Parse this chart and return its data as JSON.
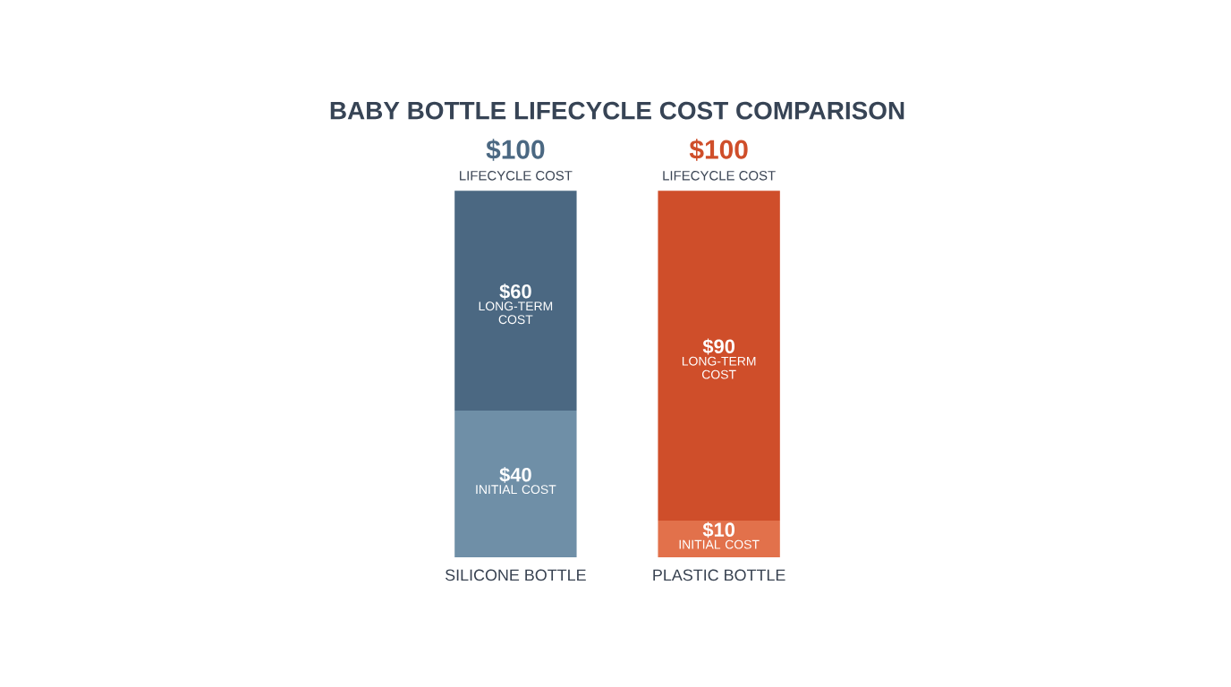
{
  "chart_data": {
    "type": "bar",
    "stacked": true,
    "title": "BABY BOTTLE LIFECYCLE COST COMPARISON",
    "categories": [
      "SILICONE BOTTLE",
      "PLASTIC BOTTLE"
    ],
    "series": [
      {
        "name": "INITIAL COST",
        "colors": [
          "#6f8fa7",
          "#e2714b"
        ],
        "values": [
          40,
          10
        ],
        "value_labels": [
          "$40",
          "$10"
        ]
      },
      {
        "name": "LONG-TERM COST",
        "colors": [
          "#4b6882",
          "#cf4e2a"
        ],
        "values": [
          60,
          90
        ],
        "value_labels": [
          "$60",
          "$90"
        ]
      }
    ],
    "totals": [
      "$100",
      "$100"
    ],
    "annotations": [
      {
        "text": "LIFECYCLE COST",
        "x": "SILICONE BOTTLE",
        "y": 100
      },
      {
        "text": "LIFECYCLE COST",
        "x": "PLASTIC BOTTLE",
        "y": 100
      }
    ]
  }
}
